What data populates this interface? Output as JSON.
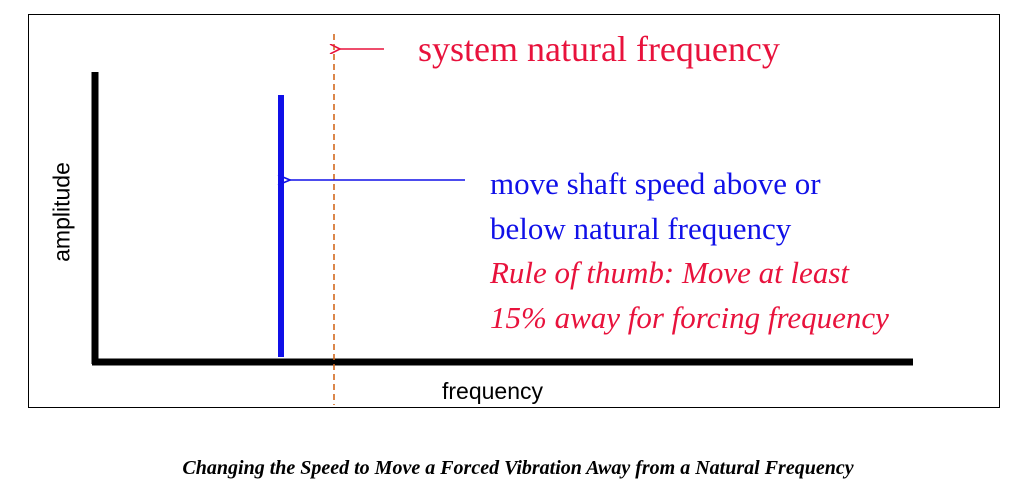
{
  "diagram": {
    "natural_frequency_label": "system natural frequency",
    "shaft_speed_note": {
      "line1": "move shaft speed above or",
      "line2": "below natural frequency"
    },
    "rule_of_thumb": {
      "line1": "Rule of thumb: Move at least",
      "line2": "15% away for forcing frequency"
    },
    "x_axis_label": "frequency",
    "y_axis_label": "amplitude"
  },
  "caption": "Changing the Speed to Move a Forced Vibration Away from a Natural Frequency",
  "colors": {
    "natural_frequency": "#e8123c",
    "forcing_frequency": "#1010e8",
    "axes": "#000000",
    "dashed_marker": "#d2691e"
  }
}
